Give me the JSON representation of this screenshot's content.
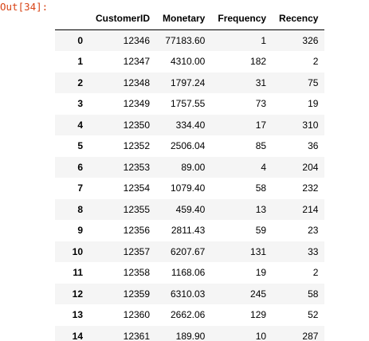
{
  "output": {
    "prompt": "Out[34]:"
  },
  "table": {
    "index_header": "",
    "columns": [
      "CustomerID",
      "Monetary",
      "Frequency",
      "Recency"
    ],
    "rows": [
      {
        "index": "0",
        "cells": [
          "12346",
          "77183.60",
          "1",
          "326"
        ]
      },
      {
        "index": "1",
        "cells": [
          "12347",
          "4310.00",
          "182",
          "2"
        ]
      },
      {
        "index": "2",
        "cells": [
          "12348",
          "1797.24",
          "31",
          "75"
        ]
      },
      {
        "index": "3",
        "cells": [
          "12349",
          "1757.55",
          "73",
          "19"
        ]
      },
      {
        "index": "4",
        "cells": [
          "12350",
          "334.40",
          "17",
          "310"
        ]
      },
      {
        "index": "5",
        "cells": [
          "12352",
          "2506.04",
          "85",
          "36"
        ]
      },
      {
        "index": "6",
        "cells": [
          "12353",
          "89.00",
          "4",
          "204"
        ]
      },
      {
        "index": "7",
        "cells": [
          "12354",
          "1079.40",
          "58",
          "232"
        ]
      },
      {
        "index": "8",
        "cells": [
          "12355",
          "459.40",
          "13",
          "214"
        ]
      },
      {
        "index": "9",
        "cells": [
          "12356",
          "2811.43",
          "59",
          "23"
        ]
      },
      {
        "index": "10",
        "cells": [
          "12357",
          "6207.67",
          "131",
          "33"
        ]
      },
      {
        "index": "11",
        "cells": [
          "12358",
          "1168.06",
          "19",
          "2"
        ]
      },
      {
        "index": "12",
        "cells": [
          "12359",
          "6310.03",
          "245",
          "58"
        ]
      },
      {
        "index": "13",
        "cells": [
          "12360",
          "2662.06",
          "129",
          "52"
        ]
      },
      {
        "index": "14",
        "cells": [
          "12361",
          "189.90",
          "10",
          "287"
        ]
      }
    ]
  },
  "colors": {
    "prompt": "#d84315",
    "row_stripe": "#f5f5f5",
    "header_rule": "#000000"
  }
}
